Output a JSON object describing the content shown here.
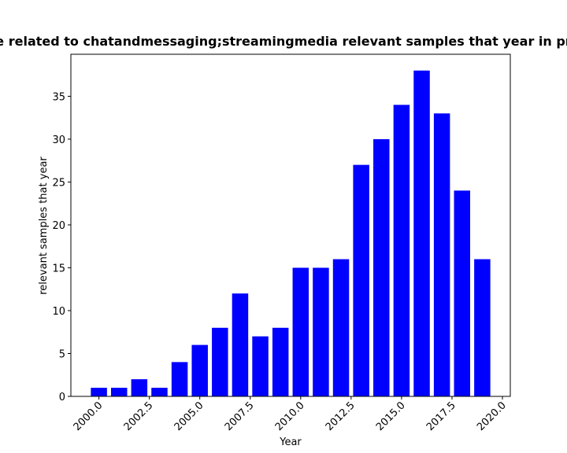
{
  "chart_data": {
    "type": "bar",
    "title": "e related to chatandmessaging;streamingmedia relevant samples that year in pr",
    "x_label": "Year",
    "y_label": "relevant samples that year",
    "x": [
      2000,
      2001,
      2002,
      2003,
      2004,
      2005,
      2006,
      2007,
      2008,
      2009,
      2010,
      2011,
      2012,
      2013,
      2014,
      2015,
      2016,
      2017,
      2018,
      2019
    ],
    "values": [
      1,
      1,
      2,
      1,
      4,
      6,
      8,
      12,
      7,
      8,
      15,
      15,
      16,
      27,
      30,
      34,
      38,
      33,
      24,
      16
    ],
    "color": "#0000ff",
    "xlim": [
      1998.61,
      2020.39
    ],
    "xticks": [
      {
        "value": 2000,
        "label": "2000.0"
      },
      {
        "value": 2002.5,
        "label": "2002.5"
      },
      {
        "value": 2005,
        "label": "2005.0"
      },
      {
        "value": 2007.5,
        "label": "2007.5"
      },
      {
        "value": 2010,
        "label": "2010.0"
      },
      {
        "value": 2012.5,
        "label": "2012.5"
      },
      {
        "value": 2015,
        "label": "2015.0"
      },
      {
        "value": 2017.5,
        "label": "2017.5"
      },
      {
        "value": 2020,
        "label": "2020.0"
      }
    ],
    "ylim": [
      0,
      39.9
    ],
    "yticks": [
      0,
      5,
      10,
      15,
      20,
      25,
      30,
      35
    ],
    "grid": false
  }
}
